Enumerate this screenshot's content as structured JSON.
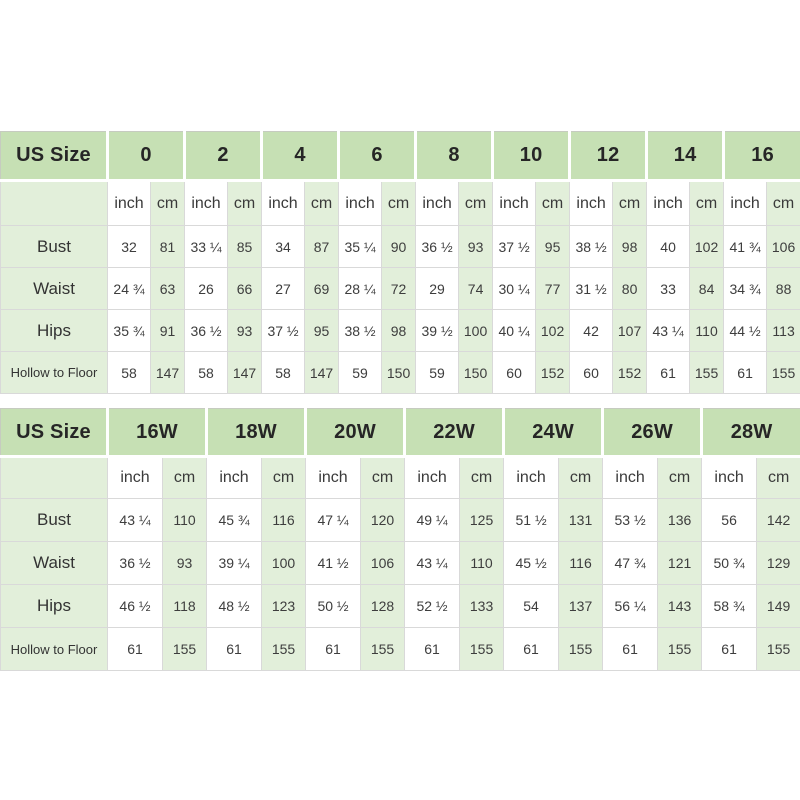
{
  "page": {
    "background": "#ffffff"
  },
  "style": {
    "header_green": "#c6e0b4",
    "light_green": "#e2efda",
    "white": "#ffffff",
    "border_light": "#d9d9d9",
    "border_outer": "#c6cbc0",
    "header_text": "#262626",
    "body_text": "#3d3d3d"
  },
  "chart_data": [
    {
      "type": "table",
      "id": "standard-size-chart",
      "title": "US Size",
      "unit_labels": [
        "inch",
        "cm"
      ],
      "sizes": [
        "0",
        "2",
        "4",
        "6",
        "8",
        "10",
        "12",
        "14",
        "16"
      ],
      "rows": [
        {
          "label": "Bust",
          "cells": [
            [
              "32",
              "81"
            ],
            [
              "33 ¼",
              "85"
            ],
            [
              "34",
              "87"
            ],
            [
              "35 ¼",
              "90"
            ],
            [
              "36 ½",
              "93"
            ],
            [
              "37 ½",
              "95"
            ],
            [
              "38 ½",
              "98"
            ],
            [
              "40",
              "102"
            ],
            [
              "41 ¾",
              "106"
            ]
          ]
        },
        {
          "label": "Waist",
          "cells": [
            [
              "24 ¾",
              "63"
            ],
            [
              "26",
              "66"
            ],
            [
              "27",
              "69"
            ],
            [
              "28 ¼",
              "72"
            ],
            [
              "29",
              "74"
            ],
            [
              "30 ¼",
              "77"
            ],
            [
              "31 ½",
              "80"
            ],
            [
              "33",
              "84"
            ],
            [
              "34 ¾",
              "88"
            ]
          ]
        },
        {
          "label": "Hips",
          "cells": [
            [
              "35 ¾",
              "91"
            ],
            [
              "36 ½",
              "93"
            ],
            [
              "37 ½",
              "95"
            ],
            [
              "38 ½",
              "98"
            ],
            [
              "39 ½",
              "100"
            ],
            [
              "40 ¼",
              "102"
            ],
            [
              "42",
              "107"
            ],
            [
              "43 ¼",
              "110"
            ],
            [
              "44 ½",
              "113"
            ]
          ]
        },
        {
          "label": "Hollow to Floor",
          "cells": [
            [
              "58",
              "147"
            ],
            [
              "58",
              "147"
            ],
            [
              "58",
              "147"
            ],
            [
              "59",
              "150"
            ],
            [
              "59",
              "150"
            ],
            [
              "60",
              "152"
            ],
            [
              "60",
              "152"
            ],
            [
              "61",
              "155"
            ],
            [
              "61",
              "155"
            ]
          ]
        }
      ]
    },
    {
      "type": "table",
      "id": "plus-size-chart",
      "title": "US Size",
      "unit_labels": [
        "inch",
        "cm"
      ],
      "sizes": [
        "16W",
        "18W",
        "20W",
        "22W",
        "24W",
        "26W",
        "28W"
      ],
      "rows": [
        {
          "label": "Bust",
          "cells": [
            [
              "43 ¼",
              "110"
            ],
            [
              "45 ¾",
              "116"
            ],
            [
              "47 ¼",
              "120"
            ],
            [
              "49 ¼",
              "125"
            ],
            [
              "51 ½",
              "131"
            ],
            [
              "53 ½",
              "136"
            ],
            [
              "56",
              "142"
            ]
          ]
        },
        {
          "label": "Waist",
          "cells": [
            [
              "36 ½",
              "93"
            ],
            [
              "39 ¼",
              "100"
            ],
            [
              "41 ½",
              "106"
            ],
            [
              "43 ¼",
              "110"
            ],
            [
              "45 ½",
              "116"
            ],
            [
              "47 ¾",
              "121"
            ],
            [
              "50 ¾",
              "129"
            ]
          ]
        },
        {
          "label": "Hips",
          "cells": [
            [
              "46 ½",
              "118"
            ],
            [
              "48 ½",
              "123"
            ],
            [
              "50 ½",
              "128"
            ],
            [
              "52 ½",
              "133"
            ],
            [
              "54",
              "137"
            ],
            [
              "56 ¼",
              "143"
            ],
            [
              "58 ¾",
              "149"
            ]
          ]
        },
        {
          "label": "Hollow to Floor",
          "cells": [
            [
              "61",
              "155"
            ],
            [
              "61",
              "155"
            ],
            [
              "61",
              "155"
            ],
            [
              "61",
              "155"
            ],
            [
              "61",
              "155"
            ],
            [
              "61",
              "155"
            ],
            [
              "61",
              "155"
            ]
          ]
        }
      ]
    }
  ]
}
